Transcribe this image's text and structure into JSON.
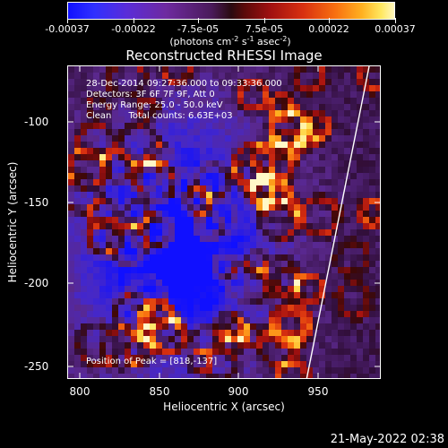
{
  "colorbar": {
    "tick_labels": [
      "-0.00037",
      "-0.00022",
      "-7.5e-05",
      "7.5e-05",
      "0.00022",
      "0.00037"
    ],
    "tick_values": [
      -0.00037,
      -0.00022,
      -7.5e-05,
      7.5e-05,
      0.00022,
      0.00037
    ],
    "range": [
      -0.00037,
      0.00037
    ],
    "units": {
      "open": "(photons cm",
      "sup1": "-2",
      "mid1": " s",
      "sup2": "-1",
      "mid2": " asec",
      "sup3": "-2",
      "close": ")"
    },
    "colors": [
      "#1010ff",
      "#6e2aa0",
      "#2a0a10",
      "#a01010",
      "#f87010",
      "#fff8c0"
    ]
  },
  "plot": {
    "title": "Reconstructed RHESSI Image",
    "xlabel": "Heliocentric X (arcsec)",
    "ylabel": "Heliocentric Y (arcsec)",
    "info_lines": [
      "28-Dec-2014 09:27:36.000 to 09:33:36.000",
      "Detectors: 3F 6F 7F 9F, Att 0",
      "Energy Range: 25.0 - 50.0 keV",
      "Clean      Total counts: 6.63E+03"
    ],
    "peak_label": "Position of Peak = [818,-137]"
  },
  "chart_data": {
    "type": "heatmap",
    "title": "Reconstructed RHESSI Image",
    "xlabel": "Heliocentric X (arcsec)",
    "ylabel": "Heliocentric Y (arcsec)",
    "xlim": [
      795,
      981
    ],
    "ylim": [
      -260,
      -74
    ],
    "x_ticks": [
      800,
      850,
      900,
      950
    ],
    "y_ticks": [
      -100,
      -150,
      -200,
      -250
    ],
    "peak_position": [
      818,
      -137
    ],
    "colorbar_range": [
      -0.00037,
      0.00037
    ]
  },
  "footer": {
    "timestamp": "21-May-2022 02:38"
  }
}
